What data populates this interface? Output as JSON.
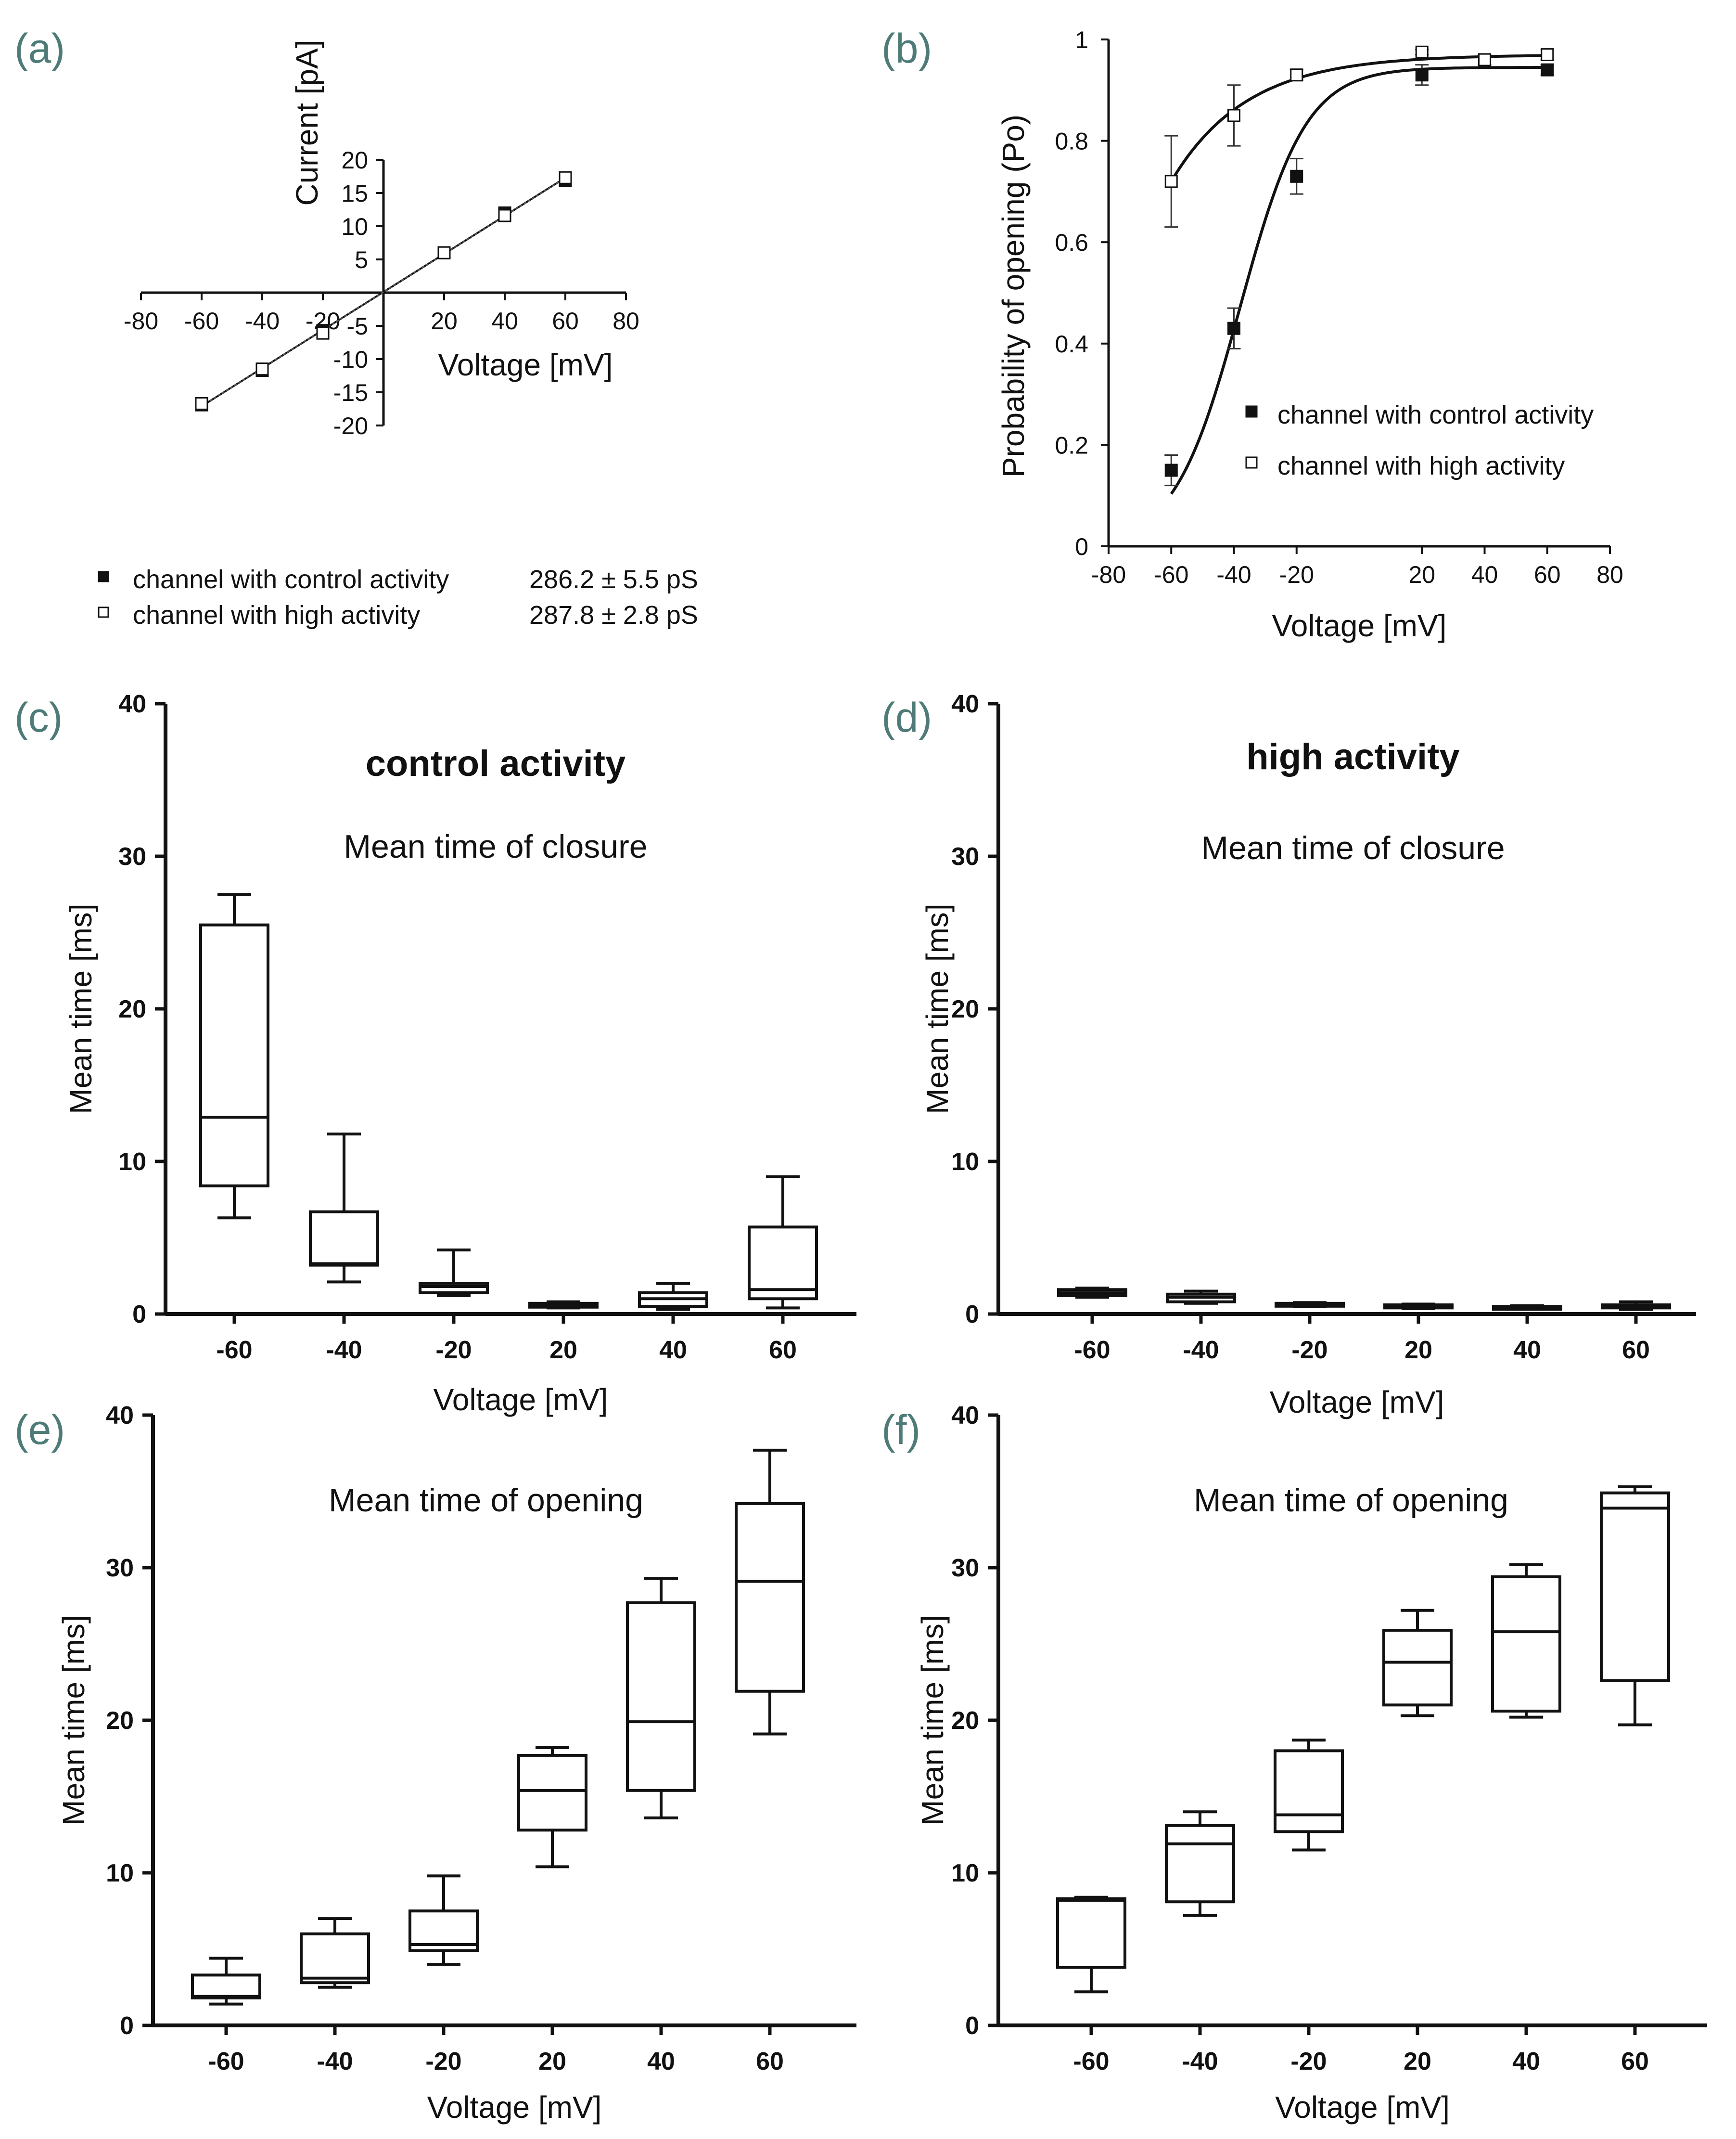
{
  "chart_data": [
    {
      "panel": "(a)",
      "type": "line",
      "xlabel": "Voltage [mV]",
      "ylabel": "Current [pA]",
      "xlim": [
        -80,
        80
      ],
      "ylim": [
        -20,
        20
      ],
      "x_ticks": [
        -80,
        -60,
        -40,
        -20,
        20,
        40,
        60,
        80
      ],
      "y_ticks": [
        -20,
        -15,
        -10,
        -5,
        5,
        10,
        15,
        20
      ],
      "series": [
        {
          "name": "channel with control activity",
          "marker": "filled-square",
          "annotation": "286.2 ± 5.5 pS",
          "x": [
            -60,
            -40,
            -20,
            20,
            40,
            60
          ],
          "y": [
            -16.9,
            -11.7,
            -5.7,
            6.0,
            12.0,
            16.9
          ],
          "err": [
            0.6,
            0.4,
            0.3,
            0.2,
            0.2,
            0.8
          ]
        },
        {
          "name": "channel with high activity",
          "marker": "open-square",
          "annotation": "287.8 ± 2.8 pS",
          "x": [
            -60,
            -40,
            -20,
            20,
            40,
            60
          ],
          "y": [
            -16.7,
            -11.5,
            -6.1,
            6.0,
            11.6,
            17.3
          ],
          "err": [
            0.8,
            0.3,
            0.3,
            0.2,
            0.3,
            0.6
          ]
        }
      ]
    },
    {
      "panel": "(b)",
      "type": "line",
      "xlabel": "Voltage [mV]",
      "ylabel": "Probability of opening (Po)",
      "xlim": [
        -80,
        80
      ],
      "ylim": [
        0,
        1
      ],
      "x_ticks": [
        -80,
        -60,
        -40,
        -20,
        20,
        40,
        60,
        80
      ],
      "y_ticks": [
        "0",
        "0.2",
        "0.4",
        "0.6",
        "0.8",
        "1"
      ],
      "series": [
        {
          "name": "channel with control activity",
          "marker": "filled-square",
          "x": [
            -60,
            -40,
            -20,
            20,
            40,
            60
          ],
          "y": [
            0.15,
            0.43,
            0.73,
            0.93,
            0.96,
            0.94
          ],
          "err": [
            0.03,
            0.04,
            0.035,
            0.02,
            0.01,
            0.01
          ]
        },
        {
          "name": "channel with high activity",
          "marker": "open-square",
          "x": [
            -60,
            -40,
            -20,
            20,
            40,
            60
          ],
          "y": [
            0.72,
            0.85,
            0.93,
            0.975,
            0.96,
            0.97
          ],
          "err": [
            0.09,
            0.06,
            0.01,
            0.005,
            0.01,
            0.01
          ]
        }
      ]
    },
    {
      "panel": "(c)",
      "type": "box",
      "title": "control activity",
      "subtitle": "Mean time of closure",
      "xlabel": "Voltage [mV]",
      "ylabel": "Mean time [ms]",
      "ylim": [
        0,
        40
      ],
      "y_ticks": [
        0,
        10,
        20,
        30,
        40
      ],
      "categories": [
        "-60",
        "-40",
        "-20",
        "20",
        "40",
        "60"
      ],
      "boxes": [
        {
          "min": 6.3,
          "q1": 8.4,
          "median": 12.9,
          "q3": 25.5,
          "max": 27.5
        },
        {
          "min": 2.1,
          "q1": 3.2,
          "median": 3.3,
          "q3": 6.7,
          "max": 11.8
        },
        {
          "min": 1.2,
          "q1": 1.4,
          "median": 1.8,
          "q3": 2.0,
          "max": 4.2
        },
        {
          "min": 0.4,
          "q1": 0.45,
          "median": 0.55,
          "q3": 0.7,
          "max": 0.8
        },
        {
          "min": 0.3,
          "q1": 0.5,
          "median": 1.0,
          "q3": 1.4,
          "max": 2.0
        },
        {
          "min": 0.4,
          "q1": 1.0,
          "median": 1.6,
          "q3": 5.7,
          "max": 9.0
        }
      ]
    },
    {
      "panel": "(d)",
      "type": "box",
      "title": "high activity",
      "subtitle": "Mean time of closure",
      "xlabel": "Voltage [mV]",
      "ylabel": "Mean time [ms]",
      "ylim": [
        0,
        40
      ],
      "y_ticks": [
        0,
        10,
        20,
        30,
        40
      ],
      "categories": [
        "-60",
        "-40",
        "-20",
        "20",
        "40",
        "60"
      ],
      "boxes": [
        {
          "min": 1.1,
          "q1": 1.2,
          "median": 1.4,
          "q3": 1.6,
          "max": 1.7
        },
        {
          "min": 0.7,
          "q1": 0.8,
          "median": 1.1,
          "q3": 1.3,
          "max": 1.5
        },
        {
          "min": 0.5,
          "q1": 0.55,
          "median": 0.65,
          "q3": 0.7,
          "max": 0.75
        },
        {
          "min": 0.35,
          "q1": 0.4,
          "median": 0.5,
          "q3": 0.6,
          "max": 0.65
        },
        {
          "min": 0.35,
          "q1": 0.4,
          "median": 0.45,
          "q3": 0.5,
          "max": 0.55
        },
        {
          "min": 0.3,
          "q1": 0.4,
          "median": 0.5,
          "q3": 0.6,
          "max": 0.8
        }
      ]
    },
    {
      "panel": "(e)",
      "type": "box",
      "subtitle": "Mean time of opening",
      "xlabel": "Voltage [mV]",
      "ylabel": "Mean time [ms]",
      "ylim": [
        0,
        40
      ],
      "y_ticks": [
        0,
        10,
        20,
        30,
        40
      ],
      "categories": [
        "-60",
        "-40",
        "-20",
        "20",
        "40",
        "60"
      ],
      "boxes": [
        {
          "min": 1.4,
          "q1": 1.8,
          "median": 1.9,
          "q3": 3.3,
          "max": 4.4
        },
        {
          "min": 2.5,
          "q1": 2.8,
          "median": 3.1,
          "q3": 6.0,
          "max": 7.0
        },
        {
          "min": 4.0,
          "q1": 4.9,
          "median": 5.3,
          "q3": 7.5,
          "max": 9.8
        },
        {
          "min": 10.4,
          "q1": 12.8,
          "median": 15.4,
          "q3": 17.7,
          "max": 18.2
        },
        {
          "min": 13.6,
          "q1": 15.4,
          "median": 19.9,
          "q3": 27.7,
          "max": 29.3
        },
        {
          "min": 19.1,
          "q1": 21.9,
          "median": 29.1,
          "q3": 34.2,
          "max": 37.7
        }
      ]
    },
    {
      "panel": "(f)",
      "type": "box",
      "subtitle": "Mean time of opening",
      "xlabel": "Voltage [mV]",
      "ylabel": "Mean time [ms]",
      "ylim": [
        0,
        40
      ],
      "y_ticks": [
        0,
        10,
        20,
        30,
        40
      ],
      "categories": [
        "-60",
        "-40",
        "-20",
        "20",
        "40",
        "60"
      ],
      "boxes": [
        {
          "min": 2.2,
          "q1": 3.8,
          "median": 8.2,
          "q3": 8.3,
          "max": 8.4
        },
        {
          "min": 7.2,
          "q1": 8.1,
          "median": 11.9,
          "q3": 13.1,
          "max": 14.0
        },
        {
          "min": 11.5,
          "q1": 12.7,
          "median": 13.8,
          "q3": 18.0,
          "max": 18.7
        },
        {
          "min": 20.3,
          "q1": 21.0,
          "median": 23.8,
          "q3": 25.9,
          "max": 27.2
        },
        {
          "min": 20.2,
          "q1": 20.6,
          "median": 25.8,
          "q3": 29.4,
          "max": 30.2
        },
        {
          "min": 19.7,
          "q1": 22.6,
          "median": 33.9,
          "q3": 34.9,
          "max": 35.3
        }
      ]
    }
  ]
}
